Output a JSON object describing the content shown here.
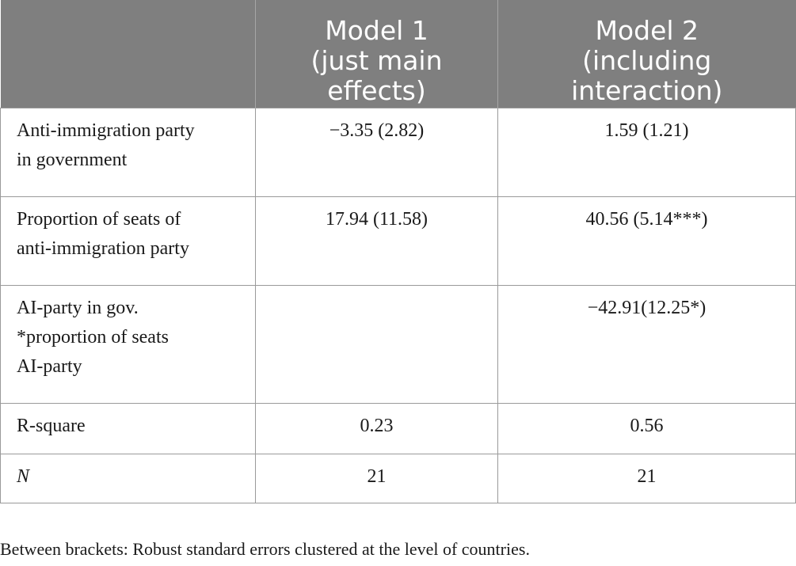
{
  "table": {
    "headers": [
      {
        "lines": []
      },
      {
        "lines": [
          "Model 1",
          "(just main",
          "effects)"
        ]
      },
      {
        "lines": [
          "Model 2",
          "(including",
          "interaction)"
        ]
      }
    ],
    "rows": [
      {
        "label_lines": [
          "Anti-immigration party",
          "in government"
        ],
        "model1": "−3.35 (2.82)",
        "model2": "1.59 (1.21)"
      },
      {
        "label_lines": [
          "Proportion of seats of",
          "anti-immigration party"
        ],
        "model1": "17.94 (11.58)",
        "model2": "40.56 (5.14***)"
      },
      {
        "label_lines": [
          "AI-party in gov.",
          "*proportion of seats",
          "AI-party"
        ],
        "model1": "",
        "model2": "−42.91(12.25*)"
      },
      {
        "label_lines": [
          "R-square"
        ],
        "model1": "0.23",
        "model2": "0.56"
      },
      {
        "label_lines": [
          "N"
        ],
        "model1": "21",
        "model2": "21"
      }
    ]
  },
  "footnote": "Between brackets: Robust standard errors clustered at the level of countries."
}
